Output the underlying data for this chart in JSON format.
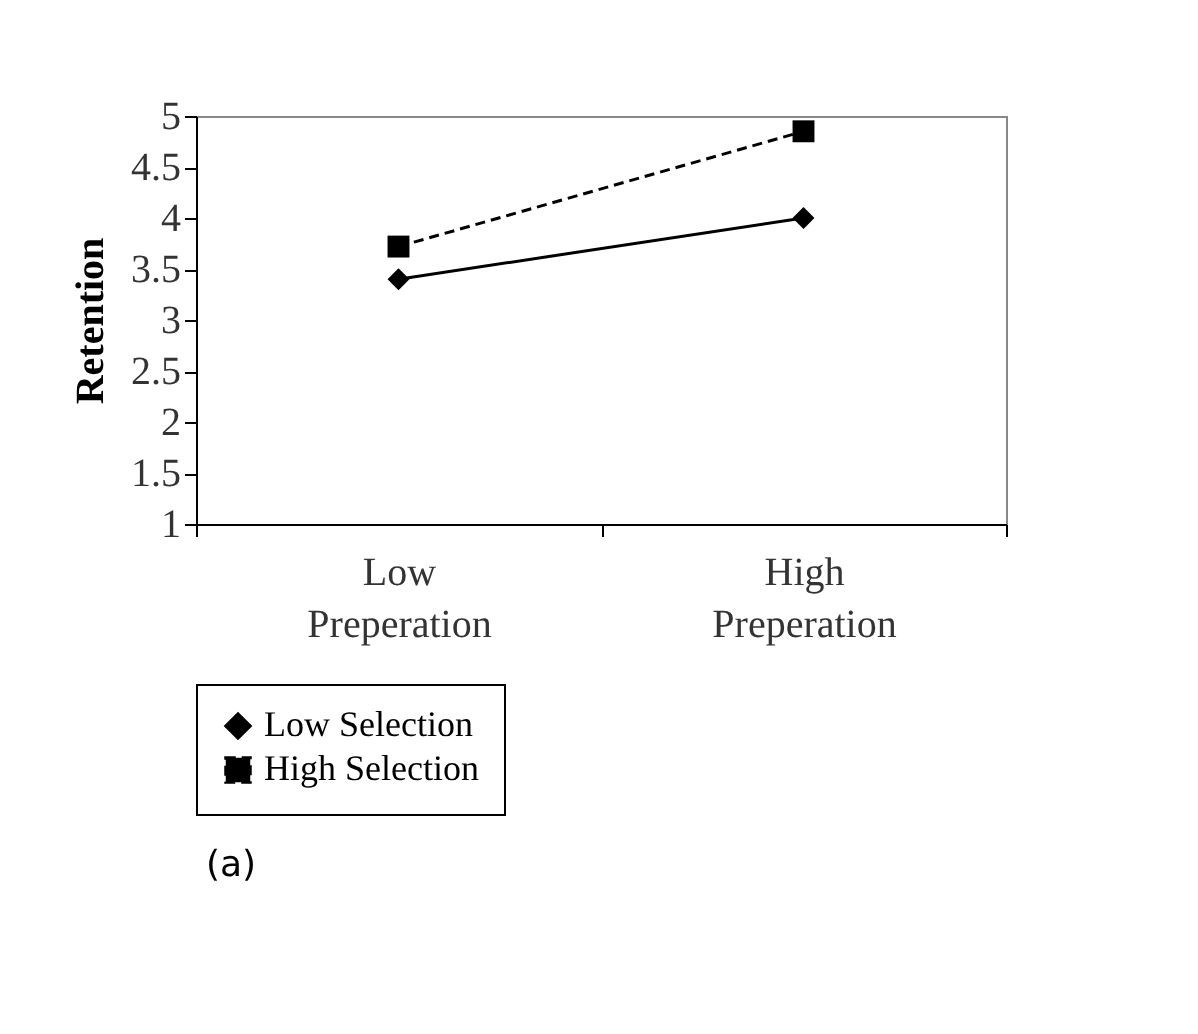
{
  "chart_data": {
    "type": "line",
    "ylabel": "Retention",
    "categories": [
      "Low Preperation",
      "High Preperation"
    ],
    "series": [
      {
        "name": "Low Selection",
        "color": "#000000",
        "values": [
          3.4,
          4.0
        ],
        "marker": "diamond",
        "line_style": "solid"
      },
      {
        "name": "High Selection",
        "color": "#000000",
        "values": [
          3.72,
          4.85
        ],
        "marker": "square",
        "line_style": "dashed"
      }
    ],
    "ylim": [
      1,
      5
    ],
    "yticks": [
      1,
      1.5,
      2,
      2.5,
      3,
      3.5,
      4,
      4.5,
      5
    ],
    "grid": false,
    "legend": "bottom",
    "annotations": [
      "(a)"
    ]
  }
}
